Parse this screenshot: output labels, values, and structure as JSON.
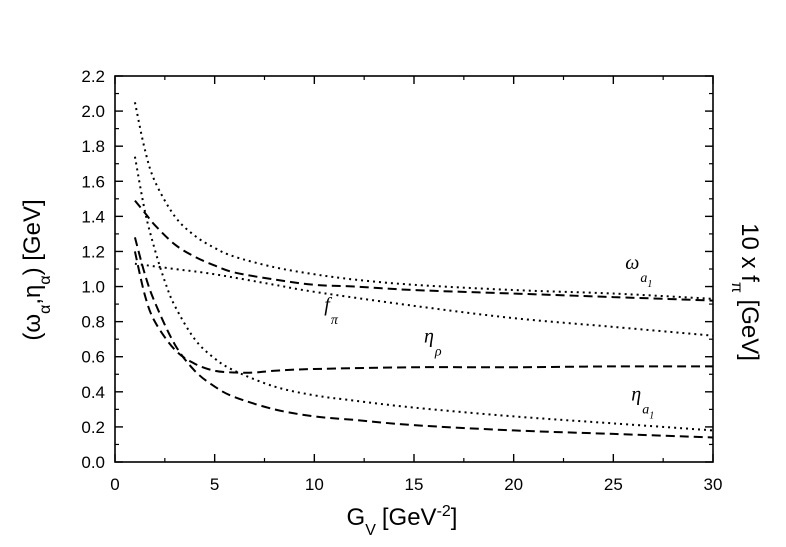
{
  "chart_data": {
    "type": "line",
    "title": "",
    "xlabel": {
      "main": "G",
      "sub": "V",
      "unit_prefix": "[GeV",
      "unit_sup": "-2",
      "unit_suffix": "]"
    },
    "ylabel": {
      "prefix": "(ω",
      "sub1": "α",
      "mid": ",η",
      "sub2": "α",
      "suffix": ") [GeV]"
    },
    "ylabel_right": {
      "prefix": "10 x f",
      "sub": "π",
      "suffix": " [GeV]"
    },
    "xlim": [
      0,
      30
    ],
    "ylim": [
      0,
      2.2
    ],
    "xticks": [
      0,
      5,
      10,
      15,
      20,
      25,
      30
    ],
    "yticks": [
      0.0,
      0.2,
      0.4,
      0.6,
      0.8,
      1.0,
      1.2,
      1.4,
      1.6,
      1.8,
      2.0,
      2.2
    ],
    "xtick_labels": [
      "0",
      "5",
      "10",
      "15",
      "20",
      "25",
      "30"
    ],
    "ytick_labels": [
      "0.0",
      "0.2",
      "0.4",
      "0.6",
      "0.8",
      "1.0",
      "1.2",
      "1.4",
      "1.6",
      "1.8",
      "2.0",
      "2.2"
    ],
    "series": [
      {
        "name": "omega_a1_dotted",
        "style": "dotted",
        "x": [
          1,
          1.5,
          2,
          3,
          4,
          5,
          6,
          8,
          10,
          12,
          15,
          20,
          25,
          30
        ],
        "values": [
          2.05,
          1.78,
          1.6,
          1.4,
          1.29,
          1.22,
          1.17,
          1.11,
          1.07,
          1.04,
          1.01,
          0.98,
          0.96,
          0.93
        ]
      },
      {
        "name": "omega_a1_dashed",
        "style": "dashed",
        "x": [
          1,
          1.5,
          2,
          3,
          4,
          5,
          6,
          8,
          10,
          12,
          15,
          20,
          25,
          30
        ],
        "values": [
          1.49,
          1.42,
          1.35,
          1.24,
          1.17,
          1.12,
          1.08,
          1.04,
          1.01,
          1.0,
          0.98,
          0.96,
          0.94,
          0.92
        ]
      },
      {
        "name": "f_pi",
        "style": "dotted",
        "x": [
          1,
          3,
          5,
          8,
          10,
          15,
          20,
          25,
          30
        ],
        "values": [
          1.13,
          1.1,
          1.07,
          1.01,
          0.97,
          0.89,
          0.82,
          0.77,
          0.72
        ]
      },
      {
        "name": "eta_rho_dotted",
        "style": "dotted",
        "x": [
          1,
          1.5,
          2,
          2.5,
          3,
          4,
          5,
          6,
          8,
          10,
          12,
          15,
          20,
          25,
          30
        ],
        "values": [
          1.74,
          1.43,
          1.21,
          1.03,
          0.89,
          0.7,
          0.59,
          0.52,
          0.43,
          0.38,
          0.35,
          0.31,
          0.26,
          0.22,
          0.18
        ]
      },
      {
        "name": "eta_rho_dashed",
        "style": "dashed",
        "x": [
          1,
          1.5,
          2,
          3,
          4,
          5,
          6,
          7,
          8,
          10,
          15,
          20,
          25,
          30
        ],
        "values": [
          1.2,
          0.95,
          0.8,
          0.64,
          0.56,
          0.52,
          0.51,
          0.51,
          0.52,
          0.53,
          0.54,
          0.54,
          0.545,
          0.545
        ]
      },
      {
        "name": "eta_a1_dashed",
        "style": "dashed",
        "x": [
          1,
          1.5,
          2,
          3,
          4,
          5,
          6,
          8,
          10,
          12,
          15,
          20,
          25,
          30
        ],
        "values": [
          1.28,
          1.07,
          0.91,
          0.67,
          0.52,
          0.43,
          0.37,
          0.3,
          0.26,
          0.24,
          0.21,
          0.18,
          0.16,
          0.14
        ]
      }
    ],
    "annotations": [
      {
        "name": "omega-a1-label",
        "main": "ω",
        "sub": "a",
        "subsub": "1",
        "x": 25.6,
        "y": 1.1
      },
      {
        "name": "f-pi-label",
        "main": "f",
        "sub": "π",
        "x": 10.5,
        "y": 0.86
      },
      {
        "name": "eta-rho-label",
        "main": "η",
        "sub": "ρ",
        "x": 15.5,
        "y": 0.68
      },
      {
        "name": "eta-a1-label",
        "main": "η",
        "sub": "a",
        "subsub": "1",
        "x": 25.9,
        "y": 0.35
      }
    ]
  }
}
